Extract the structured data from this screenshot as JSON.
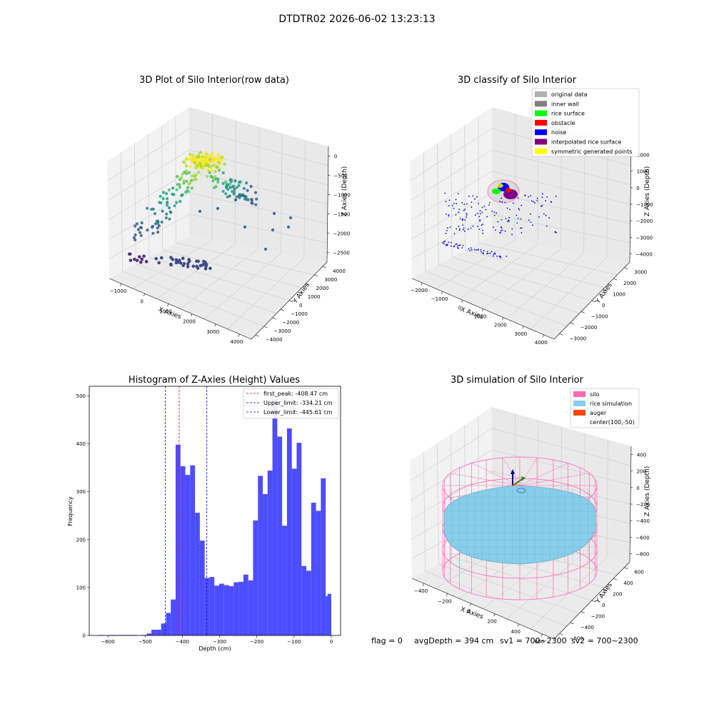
{
  "figure": {
    "suptitle": "DTDTR02 2026-06-02 13:23:13",
    "footer": {
      "flag": "flag = 0",
      "avg_depth": "avgDepth = 394 cm",
      "sv1": "sv1 = 700~2300",
      "sv2": "sv2 = 700~2300"
    }
  },
  "chart_data": [
    {
      "type": "scatter",
      "title": "3D Plot of Silo Interior(row data)",
      "xlabel": "X Axies",
      "ylabel": "Y Axies",
      "zlabel": "Z Axies (Depth)",
      "x_ticks": [
        "−1000",
        "0",
        "1000",
        "2000",
        "3000",
        "4000"
      ],
      "y_ticks": [
        "−4000",
        "−3000",
        "−2000",
        "−1000",
        "0",
        "1000",
        "2000",
        "3000",
        "4000"
      ],
      "z_ticks": [
        "0",
        "−500",
        "−1000",
        "−1500",
        "−2000",
        "−2500"
      ],
      "colormap": "viridis"
    },
    {
      "type": "scatter",
      "title": "3D classify of Silo Interior",
      "xlabel": "X Axies",
      "ylabel": "Y Axies",
      "zlabel": "Z Axies (Depth)",
      "x_ticks": [
        "−2000",
        "−1000",
        "0",
        "1000",
        "2000",
        "3000",
        "4000"
      ],
      "y_ticks": [
        "−3000",
        "−2000",
        "−1000",
        "0",
        "1000",
        "2000",
        "3000"
      ],
      "z_ticks": [
        "2000",
        "1000",
        "0",
        "−1000",
        "−2000",
        "−3000",
        "−4000"
      ],
      "legend_position": "top-right",
      "legend": [
        {
          "label": "original data",
          "color": "#b0b0b0"
        },
        {
          "label": "inner wall",
          "color": "#808080"
        },
        {
          "label": "rice surface",
          "color": "#00ff00"
        },
        {
          "label": "obstacle",
          "color": "#ff0000"
        },
        {
          "label": "noise",
          "color": "#0000ff"
        },
        {
          "label": "interpolated rice surface",
          "color": "#800080"
        },
        {
          "label": "symmetric generated points",
          "color": "#ffff00"
        }
      ]
    },
    {
      "type": "bar",
      "title": "Histogram of Z-Axies (Height) Values",
      "xlabel": "Depth (cm)",
      "ylabel": "Frequency",
      "xlim": [
        -650,
        25
      ],
      "ylim": [
        0,
        520
      ],
      "x_ticks": [
        -600,
        -500,
        -400,
        -300,
        -200,
        -100,
        0
      ],
      "y_ticks": [
        0,
        100,
        200,
        300,
        400,
        500
      ],
      "bar_color": "#4d4dff",
      "bins": [
        {
          "x0": -625,
          "x1": -612,
          "v": 1
        },
        {
          "x0": -612,
          "x1": -600,
          "v": 0
        },
        {
          "x0": -600,
          "x1": -587,
          "v": 1
        },
        {
          "x0": -587,
          "x1": -574,
          "v": 1
        },
        {
          "x0": -574,
          "x1": -561,
          "v": 1
        },
        {
          "x0": -561,
          "x1": -548,
          "v": 1
        },
        {
          "x0": -548,
          "x1": -535,
          "v": 1
        },
        {
          "x0": -535,
          "x1": -522,
          "v": 1
        },
        {
          "x0": -522,
          "x1": -509,
          "v": 0
        },
        {
          "x0": -509,
          "x1": -496,
          "v": 1
        },
        {
          "x0": -496,
          "x1": -483,
          "v": 4
        },
        {
          "x0": -483,
          "x1": -470,
          "v": 12
        },
        {
          "x0": -470,
          "x1": -457,
          "v": 12
        },
        {
          "x0": -457,
          "x1": -444,
          "v": 25
        },
        {
          "x0": -444,
          "x1": -431,
          "v": 47
        },
        {
          "x0": -431,
          "x1": -418,
          "v": 75
        },
        {
          "x0": -418,
          "x1": -405,
          "v": 398
        },
        {
          "x0": -405,
          "x1": -392,
          "v": 353
        },
        {
          "x0": -392,
          "x1": -379,
          "v": 335
        },
        {
          "x0": -379,
          "x1": -366,
          "v": 355
        },
        {
          "x0": -366,
          "x1": -353,
          "v": 256
        },
        {
          "x0": -353,
          "x1": -340,
          "v": 198
        },
        {
          "x0": -340,
          "x1": -327,
          "v": 120
        },
        {
          "x0": -327,
          "x1": -314,
          "v": 122
        },
        {
          "x0": -314,
          "x1": -301,
          "v": 104
        },
        {
          "x0": -301,
          "x1": -288,
          "v": 108
        },
        {
          "x0": -288,
          "x1": -275,
          "v": 105
        },
        {
          "x0": -275,
          "x1": -262,
          "v": 103
        },
        {
          "x0": -262,
          "x1": -249,
          "v": 111
        },
        {
          "x0": -249,
          "x1": -236,
          "v": 112
        },
        {
          "x0": -236,
          "x1": -223,
          "v": 127
        },
        {
          "x0": -223,
          "x1": -210,
          "v": 115
        },
        {
          "x0": -210,
          "x1": -197,
          "v": 240
        },
        {
          "x0": -197,
          "x1": -184,
          "v": 333
        },
        {
          "x0": -184,
          "x1": -171,
          "v": 295
        },
        {
          "x0": -171,
          "x1": -158,
          "v": 344
        },
        {
          "x0": -158,
          "x1": -145,
          "v": 493
        },
        {
          "x0": -145,
          "x1": -132,
          "v": 415
        },
        {
          "x0": -132,
          "x1": -119,
          "v": 229
        },
        {
          "x0": -119,
          "x1": -106,
          "v": 432
        },
        {
          "x0": -106,
          "x1": -93,
          "v": 348
        },
        {
          "x0": -93,
          "x1": -80,
          "v": 402
        },
        {
          "x0": -80,
          "x1": -67,
          "v": 145
        },
        {
          "x0": -67,
          "x1": -54,
          "v": 135
        },
        {
          "x0": -54,
          "x1": -41,
          "v": 277
        },
        {
          "x0": -41,
          "x1": -28,
          "v": 260
        },
        {
          "x0": -28,
          "x1": -15,
          "v": 328
        },
        {
          "x0": -15,
          "x1": -2,
          "v": 82
        },
        {
          "x0": -2,
          "x1": 0,
          "v": 0
        }
      ],
      "extra_bin": {
        "x0": -10,
        "x1": 0,
        "v": 87
      },
      "lines": [
        {
          "label": "first_peak: -408.47 cm",
          "x": -408.47,
          "color": "#ff0000"
        },
        {
          "label": "Upper_limit: -334.21 cm",
          "x": -334.21,
          "color": "#0000ff"
        },
        {
          "label": "Lower_limit: -445.61 cm",
          "x": -445.61,
          "color": "#0000ff"
        }
      ],
      "legend_position": "top-right"
    },
    {
      "type": "scatter",
      "title": "3D simulation of Silo Interior",
      "xlabel": "X Axies",
      "ylabel": "Y Axies",
      "zlabel": "Z Axies (Depth)",
      "x_ticks": [
        "−400",
        "−200",
        "0",
        "200",
        "400",
        "600"
      ],
      "y_ticks": [
        "−600",
        "−400",
        "−200",
        "0",
        "200",
        "400",
        "600"
      ],
      "z_ticks": [
        "400",
        "200",
        "0",
        "−200",
        "−400",
        "−600",
        "−800"
      ],
      "legend_position": "top-right",
      "legend": [
        {
          "label": "silo",
          "color": "#ff69b4"
        },
        {
          "label": "rice simulation",
          "color": "#87ceeb"
        },
        {
          "label": "auger",
          "color": "#ff4500"
        },
        {
          "label": "center(100,-50)",
          "color": ""
        }
      ]
    }
  ]
}
